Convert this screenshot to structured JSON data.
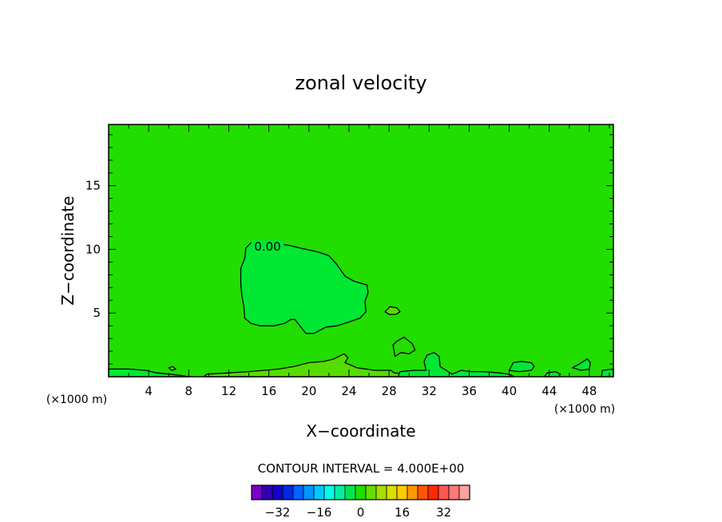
{
  "chart_data": {
    "type": "heatmap",
    "title": "zonal velocity",
    "xlabel": "X−coordinate",
    "ylabel": "Z−coordinate",
    "x_unit_label": "(×1000 m)",
    "z_unit_label": "(×1000 m)",
    "xlim": [
      0,
      50.4
    ],
    "ylim": [
      0,
      19.8
    ],
    "x_ticks": [
      4,
      8,
      12,
      16,
      20,
      24,
      28,
      32,
      36,
      40,
      44,
      48
    ],
    "x_tick_labels": [
      "4",
      "8",
      "12",
      "16",
      "20",
      "24",
      "28",
      "32",
      "36",
      "40",
      "44",
      "48"
    ],
    "y_ticks": [
      5,
      10,
      15
    ],
    "y_tick_labels": [
      "5",
      "10",
      "15"
    ],
    "background_field_color": "#22dd00",
    "regions": [
      {
        "name": "main-cell",
        "fill": "#00e832",
        "contour_value": "0.00",
        "points": [
          [
            13.6,
            9.3
          ],
          [
            13.7,
            10.1
          ],
          [
            14.2,
            10.5
          ],
          [
            14.9,
            10.6
          ],
          [
            16.6,
            10.5
          ],
          [
            18.1,
            10.3
          ],
          [
            19.1,
            10.1
          ],
          [
            20.9,
            9.8
          ],
          [
            22,
            9.5
          ],
          [
            22.8,
            8.8
          ],
          [
            23.6,
            7.9
          ],
          [
            24.5,
            7.5
          ],
          [
            25.8,
            7.2
          ],
          [
            25.9,
            6.6
          ],
          [
            25.6,
            5.9
          ],
          [
            25.7,
            5.1
          ],
          [
            25.1,
            4.6
          ],
          [
            24,
            4.3
          ],
          [
            22.8,
            4
          ],
          [
            21.7,
            3.9
          ],
          [
            20.5,
            3.4
          ],
          [
            19.7,
            3.4
          ],
          [
            19,
            4.1
          ],
          [
            18.6,
            4.5
          ],
          [
            18.2,
            4.5
          ],
          [
            17.6,
            4.2
          ],
          [
            16.5,
            4
          ],
          [
            15.1,
            4
          ],
          [
            14.2,
            4.2
          ],
          [
            13.6,
            4.6
          ],
          [
            13.5,
            5.5
          ],
          [
            13.3,
            6.4
          ],
          [
            13.2,
            7.3
          ],
          [
            13.2,
            8.5
          ]
        ]
      },
      {
        "name": "blob-28",
        "fill": "#54e000",
        "points": [
          [
            27.6,
            5.1
          ],
          [
            28,
            4.9
          ],
          [
            28.7,
            4.9
          ],
          [
            29.1,
            5.1
          ],
          [
            28.8,
            5.4
          ],
          [
            28.1,
            5.5
          ]
        ]
      },
      {
        "name": "blob-29",
        "fill": "#22dd00",
        "points": [
          [
            28.4,
            2.5
          ],
          [
            28.8,
            2.8
          ],
          [
            29.5,
            3.1
          ],
          [
            30.3,
            2.6
          ],
          [
            30.6,
            2.1
          ],
          [
            30,
            1.8
          ],
          [
            29.2,
            1.9
          ],
          [
            28.6,
            1.6
          ]
        ]
      },
      {
        "name": "ground-band",
        "fill": "#55dd00",
        "points": [
          [
            9.5,
            0
          ],
          [
            9.8,
            0.2
          ],
          [
            12,
            0.3
          ],
          [
            14,
            0.4
          ],
          [
            15.5,
            0.5
          ],
          [
            17,
            0.6
          ],
          [
            18.5,
            0.8
          ],
          [
            20,
            1.1
          ],
          [
            21.5,
            1.2
          ],
          [
            22.5,
            1.4
          ],
          [
            23.5,
            1.8
          ],
          [
            23.9,
            1.5
          ],
          [
            23.6,
            1.1
          ],
          [
            24.8,
            0.7
          ],
          [
            26.6,
            0.5
          ],
          [
            28.2,
            0.5
          ],
          [
            28.5,
            0.3
          ],
          [
            30,
            0.2
          ],
          [
            31.2,
            0
          ],
          [
            9.5,
            0
          ]
        ]
      },
      {
        "name": "ground-left",
        "fill": "#00e832",
        "points": [
          [
            0,
            0
          ],
          [
            0,
            0.6
          ],
          [
            2,
            0.6
          ],
          [
            3.7,
            0.5
          ],
          [
            4.8,
            0.3
          ],
          [
            6.1,
            0.2
          ],
          [
            7.2,
            0.1
          ],
          [
            8,
            0
          ],
          [
            0,
            0
          ]
        ]
      },
      {
        "name": "small-6",
        "fill": "#55dd00",
        "points": [
          [
            6,
            0.7
          ],
          [
            6.4,
            0.8
          ],
          [
            6.7,
            0.6
          ],
          [
            6.3,
            0.5
          ]
        ]
      },
      {
        "name": "ground-mid",
        "fill": "#00e832",
        "points": [
          [
            28.9,
            0
          ],
          [
            29.1,
            0.4
          ],
          [
            30.5,
            0.5
          ],
          [
            31.7,
            0.5
          ],
          [
            31.5,
            1.2
          ],
          [
            31.8,
            1.7
          ],
          [
            32.5,
            1.9
          ],
          [
            33,
            1.6
          ],
          [
            33.1,
            0.8
          ],
          [
            33.7,
            0.5
          ],
          [
            34.3,
            0.2
          ],
          [
            35.2,
            0.5
          ],
          [
            36.2,
            0.4
          ],
          [
            37.5,
            0.4
          ],
          [
            39,
            0.3
          ],
          [
            40,
            0.2
          ],
          [
            40.5,
            0
          ],
          [
            28.9,
            0
          ]
        ]
      },
      {
        "name": "ground-right",
        "fill": "#00e832",
        "points": [
          [
            40,
            0.5
          ],
          [
            40.4,
            1.1
          ],
          [
            41.2,
            1.2
          ],
          [
            42.2,
            1.1
          ],
          [
            42.5,
            0.8
          ],
          [
            42.2,
            0.5
          ],
          [
            41,
            0.4
          ]
        ]
      },
      {
        "name": "small-43",
        "fill": "#00e832",
        "points": [
          [
            43.5,
            0
          ],
          [
            43.8,
            0.3
          ],
          [
            44.6,
            0.4
          ],
          [
            45.1,
            0.2
          ],
          [
            44.9,
            0
          ],
          [
            43.5,
            0
          ]
        ]
      },
      {
        "name": "small-46",
        "fill": "#00e832",
        "points": [
          [
            46.3,
            0.7
          ],
          [
            47,
            1
          ],
          [
            47.8,
            1.4
          ],
          [
            48.1,
            1.1
          ],
          [
            48,
            0.6
          ],
          [
            47.2,
            0.5
          ]
        ]
      },
      {
        "name": "ground-edge",
        "fill": "#00e832",
        "points": [
          [
            49.2,
            0
          ],
          [
            49.3,
            0.5
          ],
          [
            50.4,
            0.6
          ],
          [
            50.4,
            0
          ],
          [
            49.2,
            0
          ]
        ]
      }
    ],
    "colorbar": {
      "title": "CONTOUR INTERVAL = 4.000E+00",
      "colors": [
        "#7a00c8",
        "#3200b4",
        "#1400c8",
        "#0028e6",
        "#0064ff",
        "#0096ff",
        "#00c8ff",
        "#00ffe6",
        "#00f0a0",
        "#00e650",
        "#22dd00",
        "#66dd00",
        "#aadd00",
        "#dddd00",
        "#ffcc00",
        "#ff9900",
        "#ff5500",
        "#ff2a00",
        "#ff5555",
        "#ff7878",
        "#ffa0a0"
      ],
      "tick_labels": [
        "−32",
        "−16",
        "0",
        "16",
        "32"
      ],
      "tick_values": [
        -32,
        -16,
        0,
        16,
        32
      ],
      "vmin": -42,
      "step": 4
    }
  }
}
